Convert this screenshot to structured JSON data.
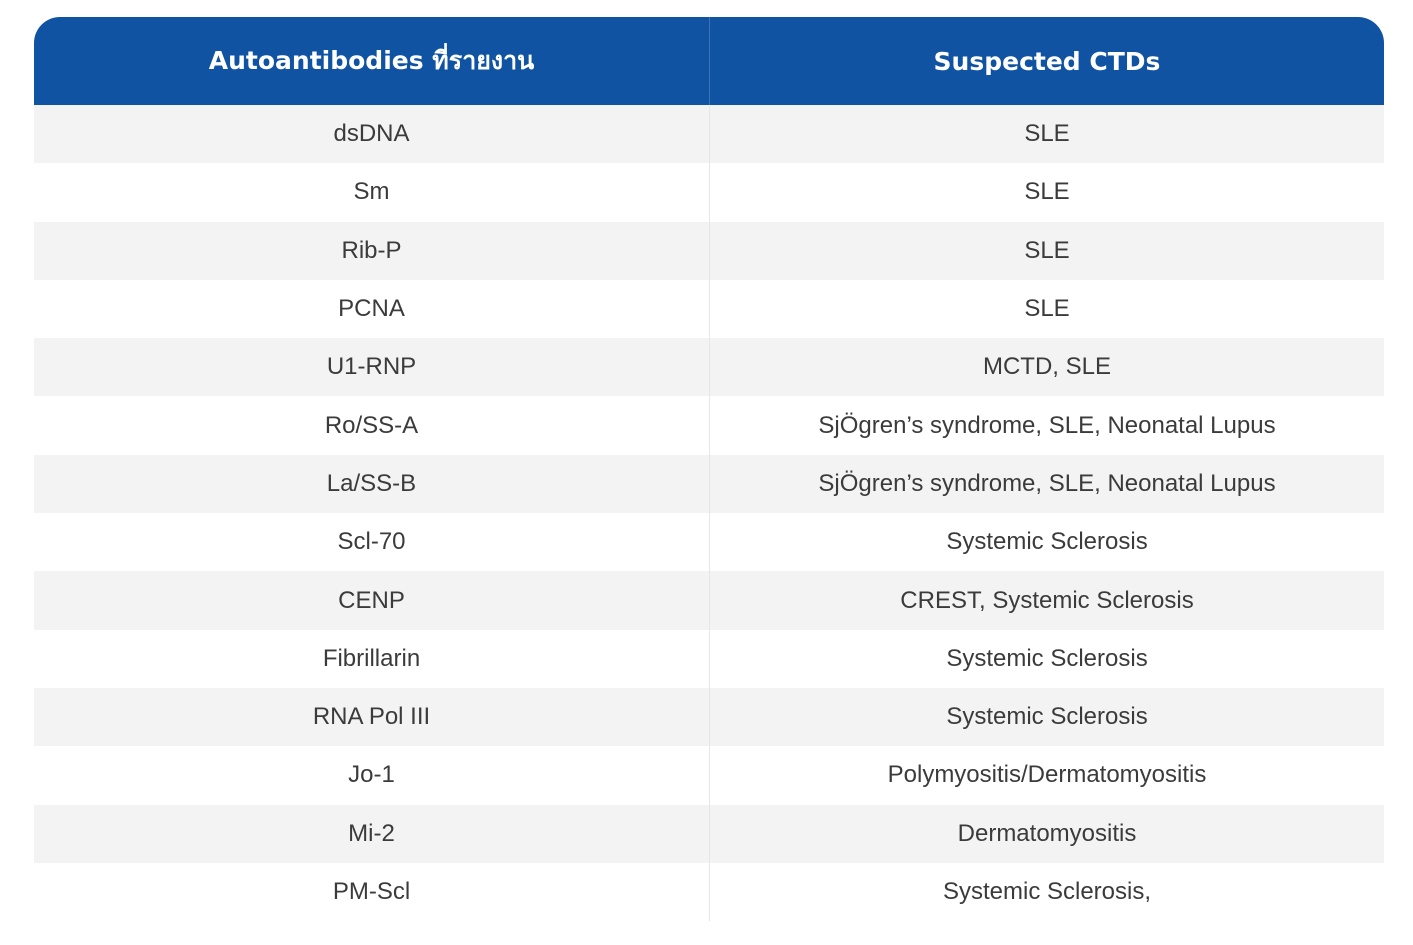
{
  "table": {
    "headers": [
      "Autoantibodies ที่รายงาน",
      "Suspected CTDs"
    ],
    "rows": [
      {
        "antibody": "dsDNA",
        "ctd": "SLE"
      },
      {
        "antibody": "Sm",
        "ctd": "SLE"
      },
      {
        "antibody": "Rib-P",
        "ctd": "SLE"
      },
      {
        "antibody": "PCNA",
        "ctd": "SLE"
      },
      {
        "antibody": "U1-RNP",
        "ctd": "MCTD, SLE"
      },
      {
        "antibody": "Ro/SS-A",
        "ctd": "SjÖgren’s syndrome, SLE, Neonatal Lupus"
      },
      {
        "antibody": "La/SS-B",
        "ctd": "SjÖgren’s syndrome, SLE, Neonatal Lupus"
      },
      {
        "antibody": "Scl-70",
        "ctd": "Systemic Sclerosis"
      },
      {
        "antibody": "CENP",
        "ctd": "CREST, Systemic Sclerosis"
      },
      {
        "antibody": "Fibrillarin",
        "ctd": "Systemic Sclerosis"
      },
      {
        "antibody": "RNA Pol III",
        "ctd": "Systemic Sclerosis"
      },
      {
        "antibody": "Jo-1",
        "ctd": "Polymyositis/Dermatomyositis"
      },
      {
        "antibody": "Mi-2",
        "ctd": "Dermatomyositis"
      },
      {
        "antibody": "PM-Scl",
        "ctd": "Systemic Sclerosis,"
      }
    ]
  },
  "colors": {
    "header_bg": "#1053a3",
    "header_text": "#ffffff",
    "row_shaded": "#f3f3f3",
    "row_plain": "#ffffff",
    "body_text": "#3b3b3b"
  }
}
